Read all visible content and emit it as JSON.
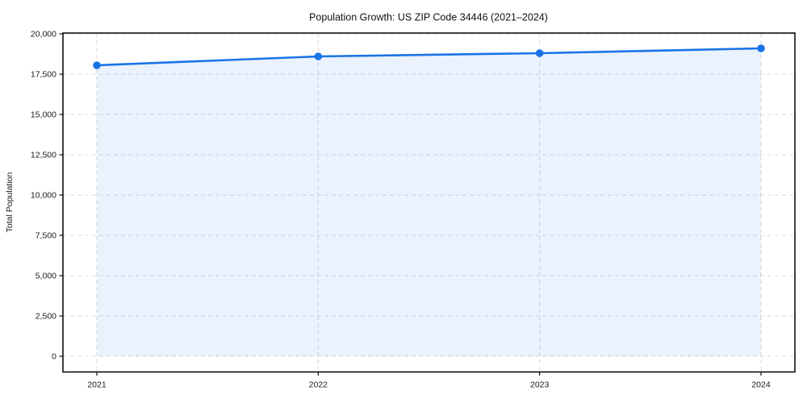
{
  "chart_data": {
    "type": "line",
    "title": "Population Growth: US ZIP Code 34446 (2021–2024)",
    "xlabel": "",
    "ylabel": "Total Population",
    "categories": [
      "2021",
      "2022",
      "2023",
      "2024"
    ],
    "series": [
      {
        "name": "Total Population",
        "values": [
          18050,
          18600,
          18800,
          19100
        ]
      }
    ],
    "yticks": [
      0,
      2500,
      5000,
      7500,
      10000,
      12500,
      15000,
      17500,
      20000
    ],
    "ytick_labels": [
      "0",
      "2,500",
      "5,000",
      "7,500",
      "10,000",
      "12,500",
      "15,000",
      "17,500",
      "20,000"
    ],
    "ylim": [
      0,
      20000
    ],
    "grid": "dashed-both-axes",
    "legend_position": "none",
    "area_fill_under_line": true,
    "marker_style": "filled-circle",
    "colors": {
      "line": "#1a73e8",
      "marker": "#1a73e8",
      "area": "rgba(26,115,232,0.09)",
      "grid": "#d9d9d9",
      "spine": "#000000",
      "tick_text": "#1a1a1a"
    }
  }
}
